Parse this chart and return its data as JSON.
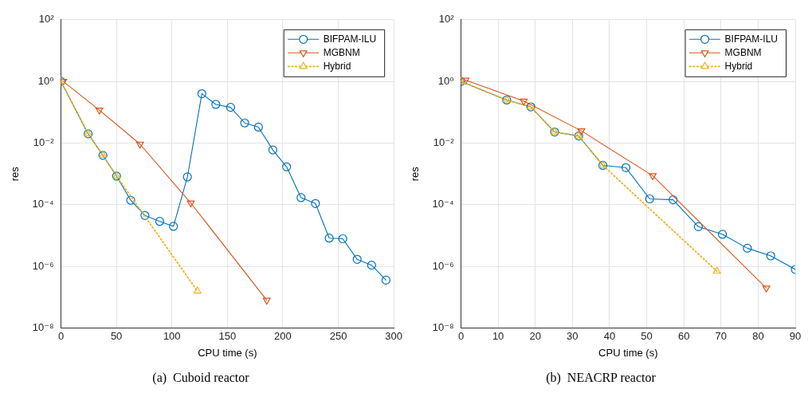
{
  "chart_data": [
    {
      "type": "line",
      "title": "(a)  Cuboid reactor",
      "xlabel": "CPU time (s)",
      "ylabel": "res",
      "log": "y",
      "grid": true,
      "legend": "top right",
      "xlim": [
        0,
        300
      ],
      "xticks": [
        0,
        50,
        100,
        150,
        200,
        250,
        300
      ],
      "ylim": [
        1e-08,
        100
      ],
      "yticks": [
        {
          "value": 1e-08,
          "label": "10⁻⁸"
        },
        {
          "value": 1e-06,
          "label": "10⁻⁶"
        },
        {
          "value": 0.0001,
          "label": "10⁻⁴"
        },
        {
          "value": 0.01,
          "label": "10⁻²"
        },
        {
          "value": 1,
          "label": "10⁰"
        },
        {
          "value": 100,
          "label": "10²"
        }
      ],
      "series": [
        {
          "name": "BIFPAM-ILU",
          "color": "#0072bd",
          "marker": "circle",
          "line_style": "solid",
          "x": [
            0,
            24.5,
            37.8,
            50.1,
            62.9,
            75.7,
            89,
            101.4,
            114,
            127,
            139.6,
            152.9,
            165.6,
            178,
            191,
            203.4,
            216.4,
            229.4,
            241.8,
            254,
            267,
            280,
            293
          ],
          "values": [
            1,
            0.02,
            0.004,
            0.00085,
            0.00014,
            4.5e-05,
            2.9e-05,
            2e-05,
            0.0008,
            0.4,
            0.18,
            0.145,
            0.045,
            0.033,
            0.006,
            0.0017,
            0.00017,
            0.00011,
            8.3e-06,
            7.9e-06,
            1.7e-06,
            1.1e-06,
            3.6e-07
          ]
        },
        {
          "name": "MGBNM",
          "color": "#d95319",
          "marker": "triangle-down",
          "line_style": "solid",
          "x": [
            2,
            34.6,
            71.2,
            117,
            185.5
          ],
          "values": [
            1,
            0.118,
            0.0093,
            0.000115,
            8e-08
          ]
        },
        {
          "name": "Hybrid",
          "color": "#edb120",
          "marker": "triangle",
          "line_style": "dotted",
          "x": [
            0,
            24.5,
            37.8,
            50.1,
            123
          ],
          "values": [
            1,
            0.02,
            0.004,
            0.00085,
            1.6e-07
          ]
        }
      ]
    },
    {
      "type": "line",
      "title": "(b)  NEACRP reactor",
      "xlabel": "CPU time (s)",
      "ylabel": "res",
      "log": "y",
      "grid": true,
      "legend": "top right",
      "xlim": [
        0,
        90
      ],
      "xticks": [
        0,
        10,
        20,
        30,
        40,
        50,
        60,
        70,
        80,
        90
      ],
      "ylim": [
        1e-08,
        100
      ],
      "yticks": [
        {
          "value": 1e-08,
          "label": "10⁻⁸"
        },
        {
          "value": 1e-06,
          "label": "10⁻⁶"
        },
        {
          "value": 0.0001,
          "label": "10⁻⁴"
        },
        {
          "value": 0.01,
          "label": "10⁻²"
        },
        {
          "value": 1,
          "label": "10⁰"
        },
        {
          "value": 100,
          "label": "10²"
        }
      ],
      "series": [
        {
          "name": "BIFPAM-ILU",
          "color": "#0072bd",
          "marker": "circle",
          "line_style": "solid",
          "x": [
            0,
            12.3,
            18.8,
            25.2,
            31.7,
            38.2,
            44.4,
            50.8,
            57.1,
            63.9,
            70.4,
            77.1,
            83.4,
            90
          ],
          "values": [
            1,
            0.25,
            0.15,
            0.023,
            0.017,
            0.0019,
            0.0016,
            0.000155,
            0.000145,
            1.95e-05,
            1.1e-05,
            3.9e-06,
            2.2e-06,
            8e-07
          ]
        },
        {
          "name": "MGBNM",
          "color": "#d95319",
          "marker": "triangle-down",
          "line_style": "solid",
          "x": [
            1.2,
            16.9,
            32.4,
            51.6,
            82.2
          ],
          "values": [
            1.1,
            0.23,
            0.025,
            0.00088,
            2e-07
          ]
        },
        {
          "name": "Hybrid",
          "color": "#edb120",
          "marker": "triangle",
          "line_style": "dotted",
          "x": [
            0,
            12.3,
            18.8,
            25.2,
            31.7,
            38.2,
            68.9
          ],
          "values": [
            1,
            0.25,
            0.15,
            0.023,
            0.017,
            0.0019,
            7e-07
          ]
        }
      ]
    }
  ]
}
